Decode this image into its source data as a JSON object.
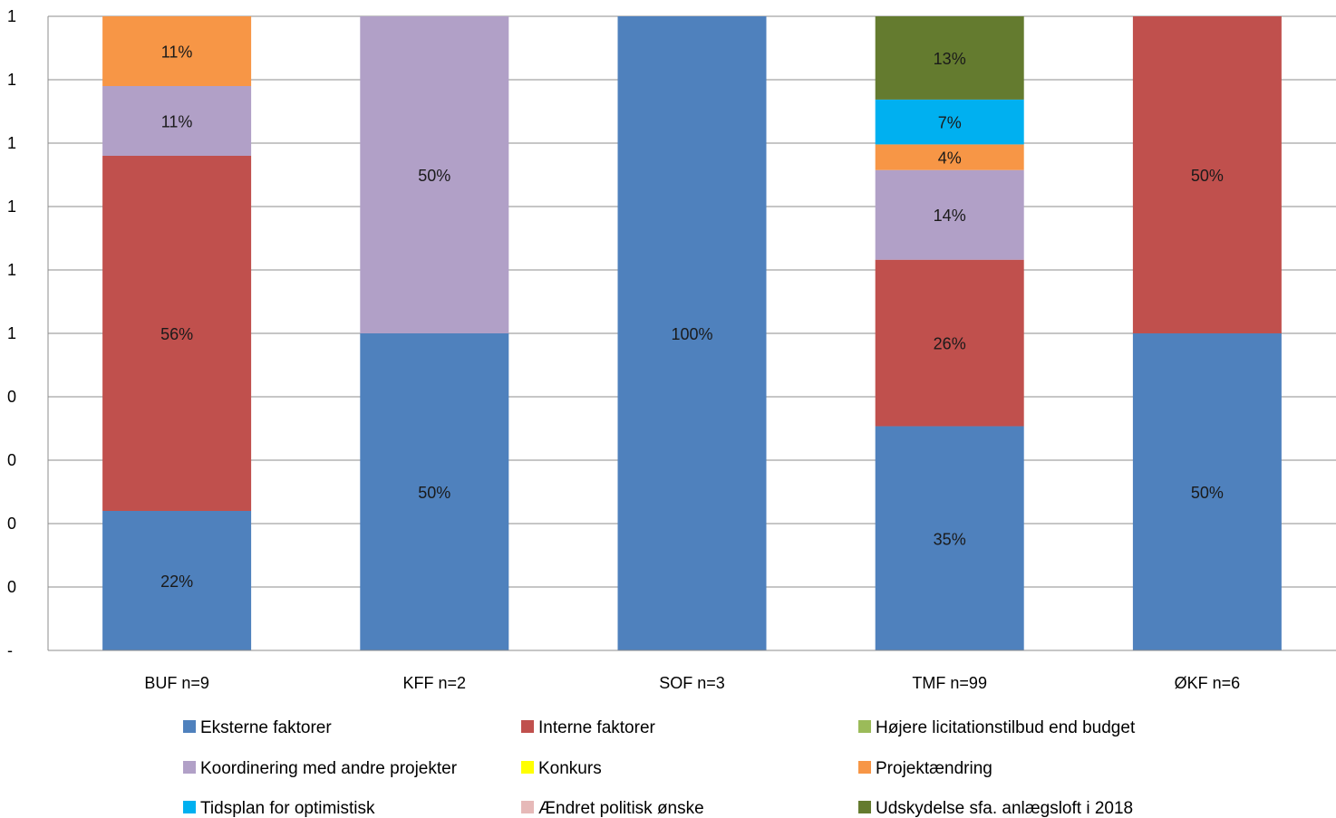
{
  "chart_data": {
    "type": "bar",
    "stacked": true,
    "normalized": true,
    "categories": [
      "BUF n=9",
      "KFF n=2",
      "SOF n=3",
      "TMF n=99",
      "ØKF n=6"
    ],
    "y_tick_labels": [
      "-",
      "0",
      "0",
      "0",
      "0",
      "1",
      "1",
      "1",
      "1",
      "1",
      "1"
    ],
    "grid": true,
    "legend_position": "bottom",
    "series": [
      {
        "name": "Eksterne faktorer",
        "color": "#4F81BD",
        "values": [
          0.22,
          0.5,
          1.0,
          0.35,
          0.5
        ],
        "labels": [
          "22%",
          "50%",
          "100%",
          "35%",
          "50%"
        ]
      },
      {
        "name": "Interne faktorer",
        "color": "#C0504D",
        "values": [
          0.56,
          0,
          0,
          0.26,
          0.5
        ],
        "labels": [
          "56%",
          "",
          "",
          "26%",
          "50%"
        ]
      },
      {
        "name": "Højere licitationstilbud end budget",
        "color": "#9BBB59",
        "values": [
          0,
          0,
          0,
          0,
          0
        ],
        "labels": [
          "",
          "",
          "",
          "",
          ""
        ]
      },
      {
        "name": "Koordinering med andre projekter",
        "color": "#B1A0C7",
        "values": [
          0.11,
          0.5,
          0,
          0.14,
          0
        ],
        "labels": [
          "11%",
          "50%",
          "",
          "14%",
          ""
        ]
      },
      {
        "name": "Konkurs",
        "color": "#FFFF00",
        "values": [
          0,
          0,
          0,
          0,
          0
        ],
        "labels": [
          "",
          "",
          "",
          "",
          ""
        ]
      },
      {
        "name": "Projektændring",
        "color": "#F79646",
        "values": [
          0.11,
          0,
          0,
          0.04,
          0
        ],
        "labels": [
          "11%",
          "",
          "",
          "4%",
          ""
        ]
      },
      {
        "name": "Tidsplan for optimistisk",
        "color": "#00B0F0",
        "values": [
          0,
          0,
          0,
          0.07,
          0
        ],
        "labels": [
          "",
          "",
          "",
          "7%",
          ""
        ]
      },
      {
        "name": "Ændret politisk ønske",
        "color": "#E6B9B8",
        "values": [
          0,
          0,
          0,
          0,
          0
        ],
        "labels": [
          "",
          "",
          "",
          "",
          ""
        ]
      },
      {
        "name": "Udskydelse sfa. anlægsloft i 2018",
        "color": "#647B2F",
        "values": [
          0,
          0,
          0,
          0.13,
          0
        ],
        "labels": [
          "",
          "",
          "",
          "13%",
          ""
        ]
      }
    ]
  }
}
